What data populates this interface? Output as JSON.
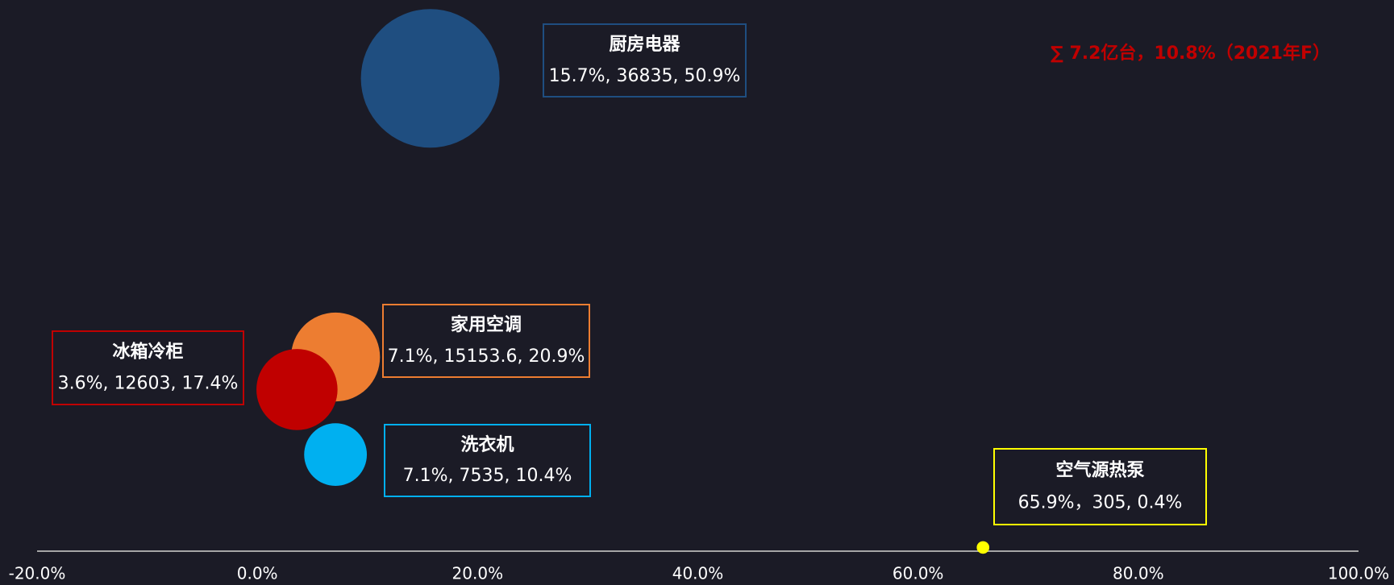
{
  "chart_data": {
    "type": "bubble",
    "annotation": "∑ 7.2亿台，10.8%（2021年F）",
    "annotation_color": "#c00000",
    "xlim": [
      -20,
      100
    ],
    "xticks": [
      {
        "value": -20,
        "label": "-20.0%"
      },
      {
        "value": 0,
        "label": "0.0%"
      },
      {
        "value": 20,
        "label": "20.0%"
      },
      {
        "value": 40,
        "label": "40.0%"
      },
      {
        "value": 60,
        "label": "60.0%"
      },
      {
        "value": 80,
        "label": "80.0%"
      },
      {
        "value": 100,
        "label": "100.0%"
      }
    ],
    "ylim": [
      0,
      55
    ],
    "series": [
      {
        "name": "厨房电器",
        "color": "#1f4e80",
        "x": [
          15.7
        ],
        "values": [
          50.9
        ],
        "sizes": [
          36835
        ],
        "value_labels": [
          "15.7%, 36835, 50.9%"
        ]
      },
      {
        "name": "家用空调",
        "color": "#ed7d31",
        "x": [
          7.1
        ],
        "values": [
          20.9
        ],
        "sizes": [
          15153.6
        ],
        "value_labels": [
          "7.1%, 15153.6, 20.9%"
        ]
      },
      {
        "name": "冰箱冷柜",
        "color": "#c00000",
        "x": [
          3.6
        ],
        "values": [
          17.4
        ],
        "sizes": [
          12603
        ],
        "value_labels": [
          "3.6%, 12603, 17.4%"
        ]
      },
      {
        "name": "洗衣机",
        "color": "#00b0f0",
        "x": [
          7.1
        ],
        "values": [
          10.4
        ],
        "sizes": [
          7535
        ],
        "value_labels": [
          "7.1%, 7535, 10.4%"
        ]
      },
      {
        "name": "空气源热泵",
        "color": "#ffff00",
        "x": [
          65.9
        ],
        "values": [
          0.4
        ],
        "sizes": [
          305
        ],
        "value_labels": [
          "65.9%，305, 0.4%"
        ]
      }
    ]
  }
}
